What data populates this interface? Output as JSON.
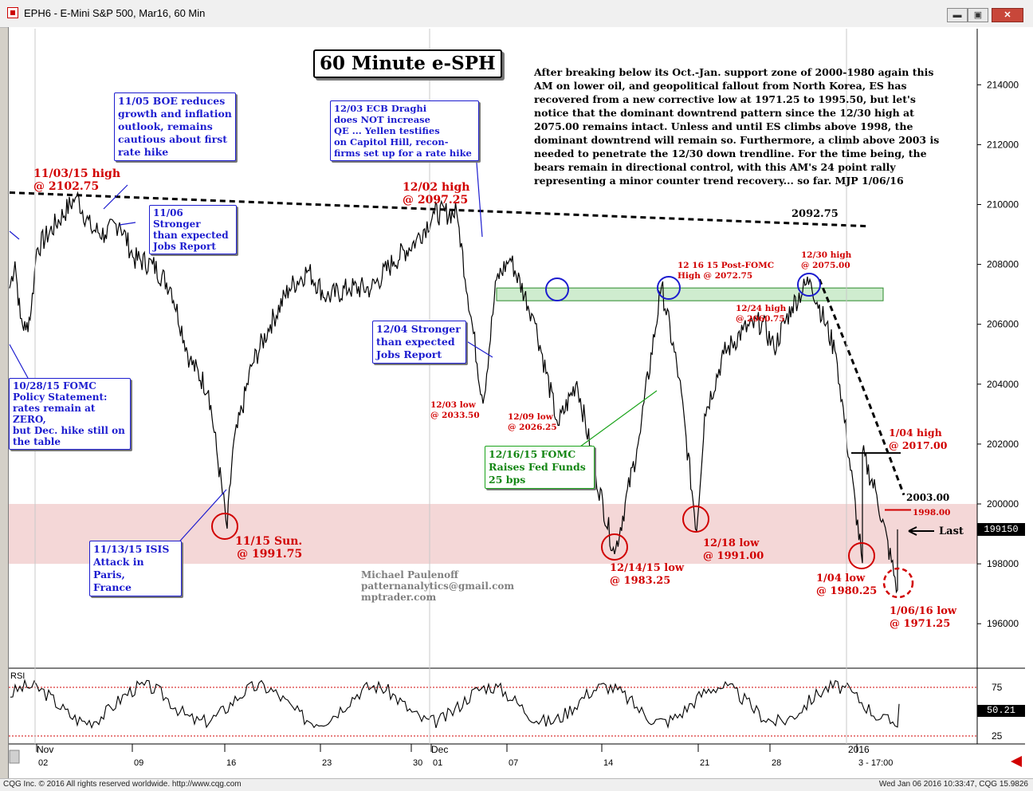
{
  "window": {
    "title": "EPH6 - E-Mini S&P 500, Mar16, 60 Min",
    "buttons": [
      "minimize",
      "restore",
      "close"
    ]
  },
  "status_bar": {
    "left": "CQG Inc. © 2016 All rights reserved worldwide. http://www.cqg.com",
    "right": "Wed Jan 06 2016 10:33:47, CQG 15.9826"
  },
  "chart_title": "60 Minute e-SPH",
  "commentary": "After breaking below its Oct.-Jan. support zone of 2000-1980 again this AM on lower oil, and geopolitical fallout from North Korea, ES has recovered from a new corrective low at 1971.25 to 1995.50, but let's notice that the dominant downtrend pattern since the 12/30 high at 2075.00 remains intact. Unless and until ES climbs above 1998, the dominant downtrend will remain so. Furthermore, a climb above 2003 is needed to penetrate the 12/30 down trendline. For the time being, the bears remain in directional control, with this AM's 24 point rally representing a minor counter trend recovery... so far.  MJP 1/06/16",
  "author": {
    "name": "Michael Paulenoff",
    "email": "patternanalytics@gmail.com",
    "site": "mptrader.com"
  },
  "last_price": "199150",
  "last_label": "Last",
  "rsi_label": "RSI",
  "rsi_value": "50.21",
  "annotations": {
    "a1": {
      "l1": "11/03/15 high",
      "l2": "@ 2102.75"
    },
    "a2": [
      "11/05 BOE reduces",
      "growth and inflation",
      "outlook, remains",
      "cautious about first",
      "rate hike"
    ],
    "a3": [
      "11/06 Stronger",
      "than expected",
      "Jobs Report"
    ],
    "a4": [
      "12/03 ECB Draghi",
      "does NOT increase",
      "QE ... Yellen testifies",
      "on Capitol Hill, recon-",
      "firms set up for a rate hike"
    ],
    "a5": {
      "l1": "12/02 high",
      "l2": "@ 2097.25"
    },
    "a6": [
      "10/28/15 FOMC",
      "Policy Statement:",
      "rates remain at ZERO,",
      "but Dec. hike still on",
      "the table"
    ],
    "a7": [
      "12/04 Stronger",
      "than expected",
      "Jobs Report"
    ],
    "a8": {
      "l1": "12/03 low",
      "l2": "@ 2033.50"
    },
    "a9": {
      "l1": "12/09 low",
      "l2": "@ 2026.25"
    },
    "a10": [
      "12/16/15 FOMC",
      "Raises Fed Funds",
      "25 bps"
    ],
    "a11": {
      "l1": "12 16 15 Post-FOMC",
      "l2": "High @ 2072.75"
    },
    "a12": {
      "l1": "12/30 high",
      "l2": "@ 2075.00"
    },
    "a13": {
      "l1": "12/24 high",
      "l2": "@ 2060.75"
    },
    "a14": "2092.75",
    "a15": {
      "l1": "1/04 high",
      "l2": "@ 2017.00"
    },
    "a16": "2003.00",
    "a17": "1998.00",
    "a18": {
      "l1": "11/15 Sun.",
      "l2": "@ 1991.75"
    },
    "a19": [
      "11/13/15 ISIS",
      "Attack in Paris,",
      "France"
    ],
    "a20": {
      "l1": "12/14/15 low",
      "l2": "@ 1983.25"
    },
    "a21": {
      "l1": "12/18 low",
      "l2": "@ 1991.00"
    },
    "a22": {
      "l1": "1/04 low",
      "l2": "@ 1980.25"
    },
    "a23": {
      "l1": "1/06/16 low",
      "l2": "@ 1971.25"
    }
  },
  "colors": {
    "support_zone": "#f4d7d7",
    "resistance_zone": "#cfeccf",
    "trendline": "#000000",
    "circle_blue": "#1c1ccf",
    "circle_red": "#d10000",
    "rsi_line": "#000000",
    "rsi_ref": "#d10000"
  },
  "chart_data": {
    "type": "line",
    "title": "60 Minute e-SPH",
    "y_axis": {
      "min": 1955,
      "max": 2147,
      "ticks": [
        1960,
        1980,
        2000,
        2020,
        2040,
        2060,
        2080,
        2100,
        2120,
        2140
      ],
      "tick_labels": [
        "196000",
        "198000",
        "200000",
        "202000",
        "204000",
        "206000",
        "208000",
        "210000",
        "212000",
        "214000"
      ]
    },
    "x_axis": {
      "month_labels": [
        "Nov",
        "Dec",
        "2016"
      ],
      "day_labels": [
        "02",
        "09",
        "16",
        "23",
        "30",
        "01",
        "07",
        "14",
        "21",
        "28",
        "3 - 17:00"
      ]
    },
    "price_series": {
      "name": "EPH6 60 Min close",
      "points": [
        [
          "10/26",
          2072
        ],
        [
          "10/27",
          2081
        ],
        [
          "10/28",
          2062
        ],
        [
          "10/29",
          2058
        ],
        [
          "10/30",
          2065
        ],
        [
          "11/02",
          2085
        ],
        [
          "11/03",
          2102.75
        ],
        [
          "11/04",
          2092
        ],
        [
          "11/05",
          2090
        ],
        [
          "11/06",
          2094
        ],
        [
          "11/09",
          2082
        ],
        [
          "11/10",
          2080
        ],
        [
          "11/11",
          2072
        ],
        [
          "11/12",
          2048
        ],
        [
          "11/13",
          2038
        ],
        [
          "11/15",
          1991.75
        ],
        [
          "11/16",
          2018
        ],
        [
          "11/17",
          2046
        ],
        [
          "11/18",
          2060
        ],
        [
          "11/19",
          2072
        ],
        [
          "11/20",
          2078
        ],
        [
          "11/23",
          2069
        ],
        [
          "11/24",
          2072
        ],
        [
          "11/25",
          2072
        ],
        [
          "11/27",
          2081
        ],
        [
          "11/30",
          2088
        ],
        [
          "12/01",
          2097
        ],
        [
          "12/02",
          2097.25
        ],
        [
          "12/03",
          2033.5
        ],
        [
          "12/04",
          2075
        ],
        [
          "12/07",
          2082
        ],
        [
          "12/08",
          2062
        ],
        [
          "12/09",
          2026.25
        ],
        [
          "12/10",
          2041
        ],
        [
          "12/11",
          2010
        ],
        [
          "12/14",
          1983.25
        ],
        [
          "12/15",
          2020
        ],
        [
          "12/16",
          2072.75
        ],
        [
          "12/17",
          2042
        ],
        [
          "12/18",
          1991
        ],
        [
          "12/21",
          2030
        ],
        [
          "12/22",
          2050
        ],
        [
          "12/23",
          2058
        ],
        [
          "12/24",
          2060.75
        ],
        [
          "12/28",
          2052
        ],
        [
          "12/29",
          2066
        ],
        [
          "12/30",
          2075
        ],
        [
          "12/31",
          2050
        ],
        [
          "01/04",
          1980.25
        ],
        [
          "01/04",
          2017
        ],
        [
          "01/05",
          2003
        ],
        [
          "01/06",
          1971.25
        ],
        [
          "01/06",
          1991.5
        ]
      ]
    },
    "downtrend_long": [
      [
        "10/26",
        2104
      ],
      [
        "01/05",
        2092.75
      ]
    ],
    "downtrend_short": [
      [
        "12/30",
        2075
      ],
      [
        "01/06",
        2003
      ]
    ],
    "support_zone": [
      1980,
      2000
    ],
    "resistance_zone": [
      2068,
      2072
    ],
    "levels": {
      "high_1_04": 2017,
      "resistance": 1998,
      "trendline": 2003,
      "last": 1991.5
    },
    "rsi": {
      "ref_levels": [
        75,
        25
      ],
      "tick_labels": [
        "75",
        "25"
      ],
      "last": 50.21
    }
  }
}
